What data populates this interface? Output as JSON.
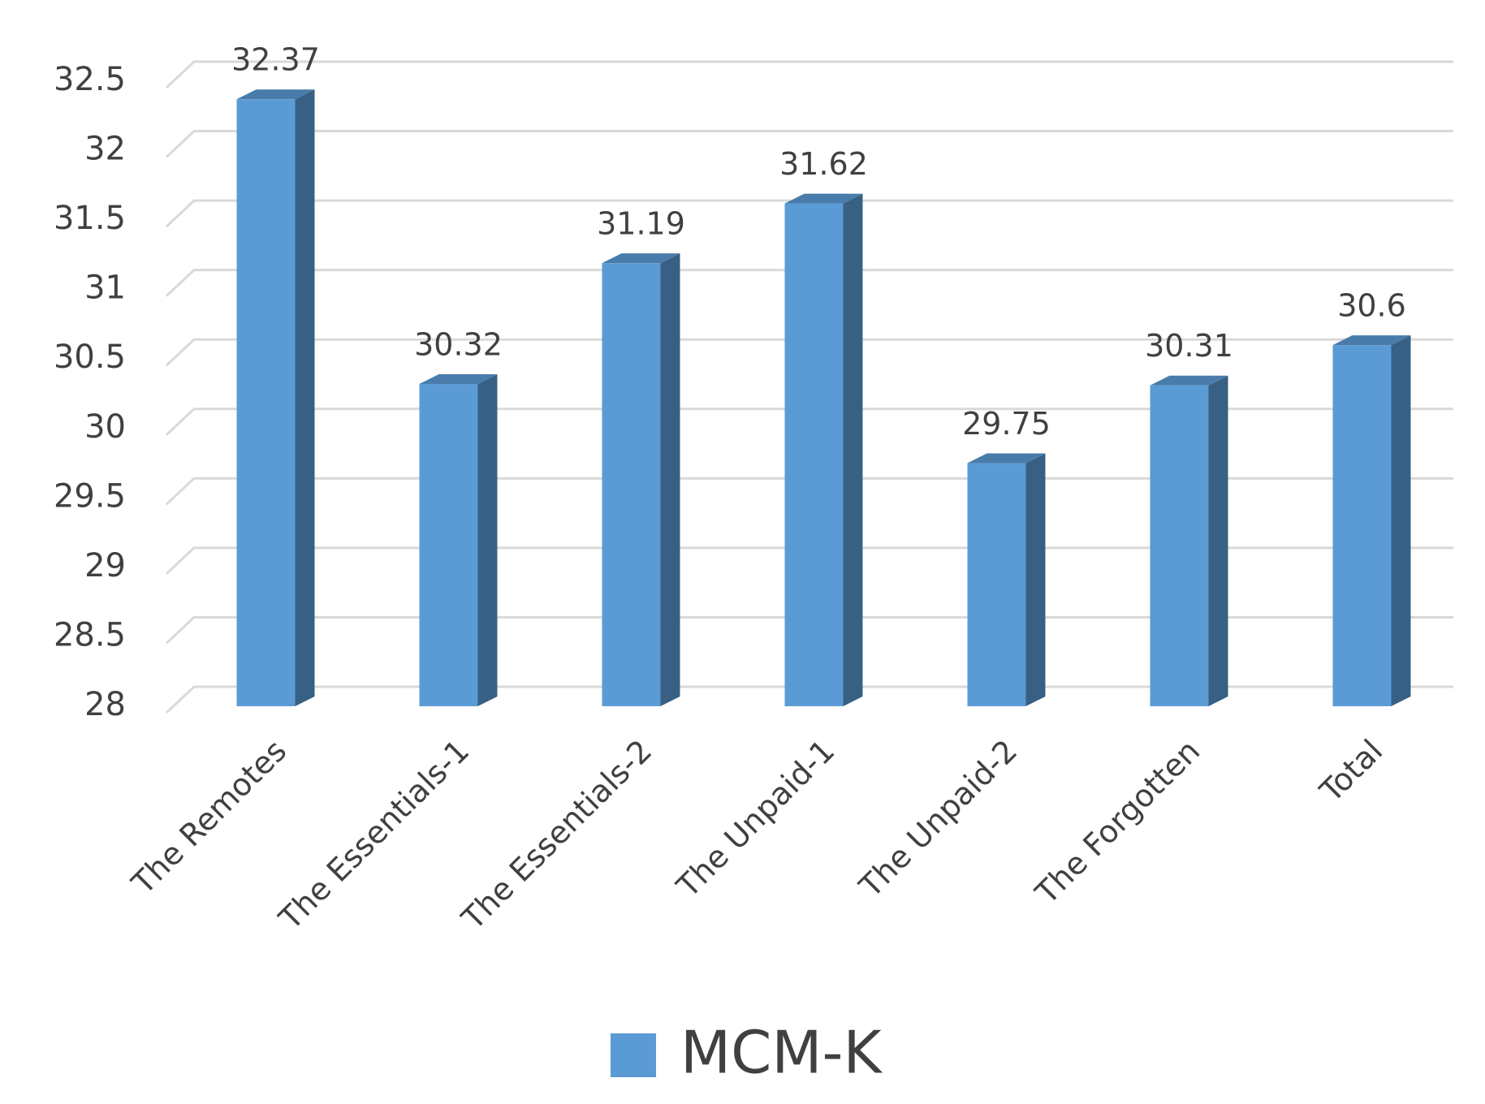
{
  "chart_data": {
    "type": "bar",
    "categories": [
      "The Remotes",
      "The Essentials-1",
      "The Essentials-2",
      "The Unpaid-1",
      "The Unpaid-2",
      "The Forgotten",
      "Total"
    ],
    "series": [
      {
        "name": "MCM-K",
        "color": "#5b9bd5",
        "values": [
          32.37,
          30.32,
          31.19,
          31.62,
          29.75,
          30.31,
          30.6
        ]
      }
    ],
    "ylim": [
      28,
      32.5
    ],
    "yticks": [
      28,
      28.5,
      29,
      29.5,
      30,
      30.5,
      31,
      31.5,
      32,
      32.5
    ],
    "grid": true,
    "legend": "bottom"
  }
}
